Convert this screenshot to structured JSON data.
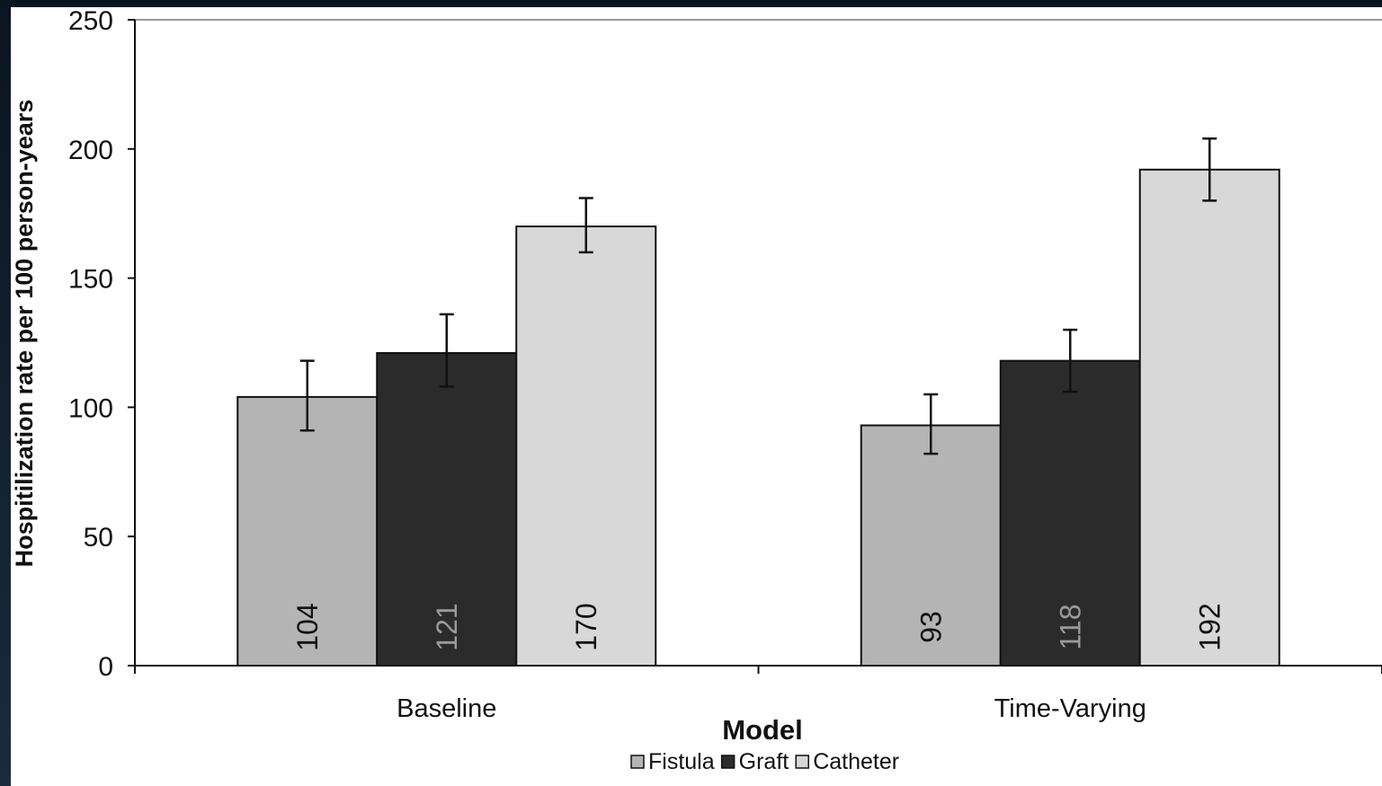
{
  "chart_data": {
    "type": "bar",
    "title": "",
    "xlabel": "Model",
    "ylabel": "Hospitilization rate per 100 person-years",
    "ylim": [
      0,
      250
    ],
    "yticks": [
      0,
      50,
      100,
      150,
      200,
      250
    ],
    "categories": [
      "Baseline",
      "Time-Varying"
    ],
    "grid": false,
    "legend_position": "bottom",
    "series": [
      {
        "name": "Fistula",
        "values": [
          104,
          93
        ],
        "labels": [
          "104",
          "93"
        ],
        "error_low": [
          91,
          82
        ],
        "error_high": [
          118,
          105
        ],
        "color": "#b4b4b4"
      },
      {
        "name": "Graft",
        "values": [
          121,
          118
        ],
        "labels": [
          "121",
          "118"
        ],
        "error_low": [
          108,
          106
        ],
        "error_high": [
          136,
          130
        ],
        "color": "#2b2b2b"
      },
      {
        "name": "Catheter",
        "values": [
          170,
          192
        ],
        "labels": [
          "170",
          "192"
        ],
        "error_low": [
          160,
          180
        ],
        "error_high": [
          181,
          204
        ],
        "color": "#d8d8d8"
      }
    ]
  }
}
